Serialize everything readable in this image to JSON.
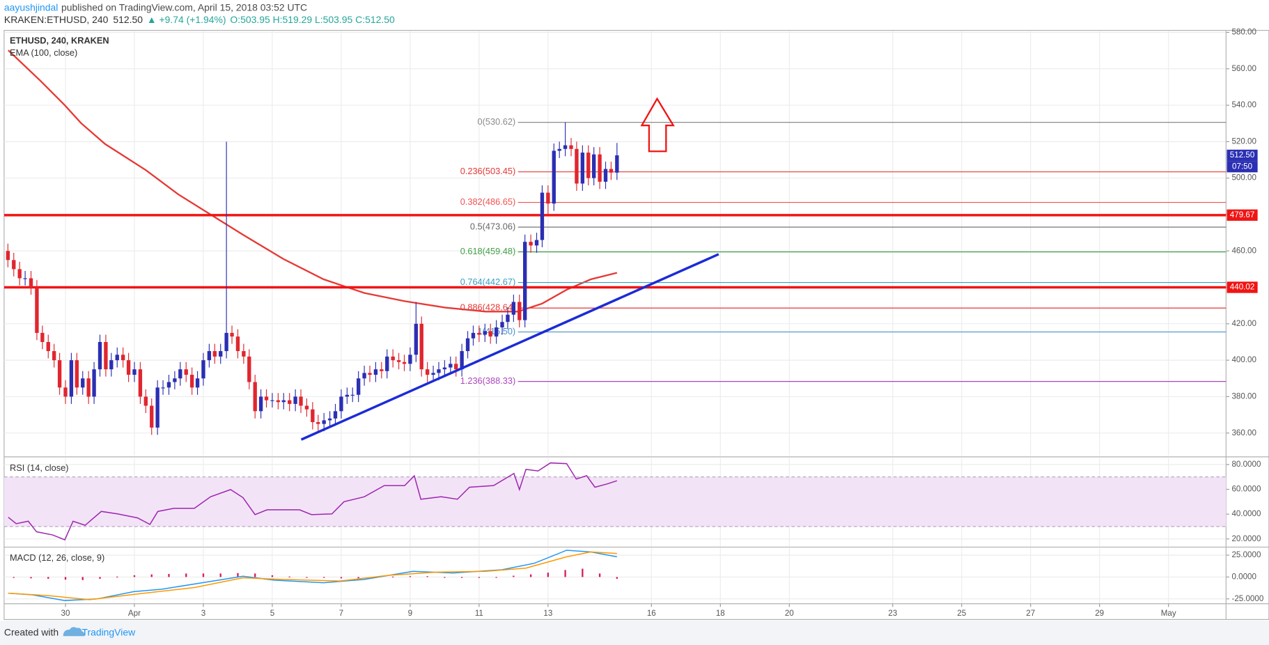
{
  "header": {
    "publisher": "aayushjindal",
    "published": "published on TradingView.com, April 15, 2018 03:52 UTC",
    "symbol": "KRAKEN:ETHUSD, 240",
    "last": "512.50",
    "change": "▲ +9.74 (+1.94%)",
    "ohlc": "O:503.95 H:519.29 L:503.95 C:512.50"
  },
  "chart_data": [
    {
      "type": "candlestick",
      "title": "ETHUSD, 240, KRAKEN",
      "up_color": "#2b2fb3",
      "down_color": "#e0262f",
      "x": [
        -3.67,
        -3.5,
        -3.33,
        -3.17,
        -3,
        -2.83,
        -2.67,
        -2.5,
        -2.33,
        -2.17,
        -2,
        -1.83,
        -1.67,
        -1.5,
        -1.33,
        -1.17,
        -1,
        -0.83,
        -0.67,
        -0.5,
        -0.33,
        -0.17,
        0,
        0.17,
        0.33,
        0.5,
        0.67,
        0.83,
        1,
        1.17,
        1.33,
        1.5,
        1.67,
        1.83,
        2,
        2.17,
        2.33,
        2.5,
        2.67,
        2.83,
        3,
        3.17,
        3.33,
        3.5,
        3.67,
        3.83,
        4,
        4.17,
        4.33,
        4.5,
        4.67,
        4.83,
        5,
        5.17,
        5.33,
        5.5,
        5.67,
        5.83,
        6,
        6.17,
        6.33,
        6.5,
        6.67,
        6.83,
        7,
        7.17,
        7.33,
        7.5,
        7.67,
        7.83,
        8,
        8.17,
        8.33,
        8.5,
        8.67,
        8.83,
        9,
        9.17,
        9.33,
        9.5,
        9.67,
        9.83,
        10,
        10.17,
        10.33,
        10.5,
        10.67,
        10.83,
        11,
        11.17,
        11.33,
        11.5,
        11.67,
        11.83,
        12,
        12.17,
        12.33,
        12.5,
        12.67,
        12.83,
        13,
        13.17,
        13.33,
        13.5,
        13.67,
        13.83,
        14
      ],
      "open": [
        460,
        455,
        450,
        445,
        445,
        440,
        415,
        410,
        405,
        400,
        385,
        380,
        400,
        385,
        390,
        380,
        395,
        410,
        395,
        400,
        403,
        400,
        392,
        395,
        380,
        375,
        363,
        385,
        385,
        388,
        390,
        395,
        392,
        385,
        390,
        400,
        405,
        402,
        405,
        415,
        413,
        405,
        402,
        388,
        372,
        380,
        378,
        378,
        377,
        378,
        376,
        380,
        375,
        373,
        366,
        365,
        367,
        368,
        372,
        380,
        381,
        381,
        390,
        393,
        392,
        395,
        394,
        402,
        400,
        399,
        398,
        403,
        420,
        395,
        392,
        393,
        395,
        396,
        398,
        395,
        405,
        412,
        415,
        414,
        416,
        413,
        418,
        421,
        425,
        432,
        422,
        465,
        463,
        466,
        492,
        486,
        515,
        516,
        518,
        516,
        497,
        514,
        500,
        513,
        498,
        505,
        503
      ],
      "high": [
        464,
        459,
        454,
        449,
        449,
        444,
        419,
        414,
        409,
        404,
        389,
        404,
        404,
        394,
        394,
        399,
        414,
        414,
        404,
        407,
        407,
        404,
        399,
        399,
        384,
        379,
        389,
        389,
        392,
        394,
        399,
        399,
        396,
        394,
        404,
        409,
        409,
        409,
        520,
        419,
        417,
        409,
        406,
        392,
        384,
        384,
        382,
        382,
        382,
        382,
        384,
        384,
        379,
        377,
        370,
        371,
        372,
        376,
        384,
        385,
        385,
        394,
        397,
        397,
        399,
        399,
        406,
        406,
        404,
        403,
        407,
        432,
        424,
        399,
        397,
        399,
        400,
        402,
        402,
        409,
        416,
        419,
        419,
        420,
        420,
        422,
        425,
        429,
        436,
        436,
        469,
        469,
        470,
        496,
        496,
        519,
        520,
        530.6,
        522,
        520,
        518,
        518,
        517,
        517,
        509,
        509,
        519.29
      ],
      "low": [
        451,
        446,
        441,
        441,
        436,
        411,
        406,
        401,
        396,
        381,
        376,
        376,
        381,
        381,
        376,
        376,
        391,
        391,
        391,
        396,
        396,
        388,
        388,
        376,
        371,
        359,
        359,
        381,
        381,
        384,
        386,
        388,
        381,
        381,
        386,
        396,
        398,
        398,
        401,
        409,
        401,
        398,
        384,
        368,
        368,
        374,
        374,
        373,
        373,
        372,
        372,
        371,
        369,
        362,
        361,
        361,
        363,
        364,
        368,
        376,
        377,
        377,
        386,
        388,
        388,
        390,
        390,
        396,
        395,
        394,
        394,
        399,
        391,
        388,
        388,
        389,
        391,
        392,
        391,
        391,
        401,
        408,
        410,
        410,
        409,
        409,
        414,
        417,
        421,
        418,
        418,
        459,
        459,
        462,
        480,
        482,
        511,
        512,
        512,
        493,
        493,
        496,
        496,
        494,
        494,
        499,
        499
      ],
      "close": [
        455,
        450,
        445,
        445,
        440,
        415,
        410,
        405,
        400,
        385,
        380,
        400,
        385,
        390,
        380,
        395,
        410,
        395,
        400,
        403,
        400,
        392,
        395,
        380,
        375,
        363,
        385,
        385,
        388,
        390,
        395,
        392,
        385,
        390,
        400,
        405,
        402,
        405,
        415,
        413,
        405,
        402,
        388,
        372,
        380,
        378,
        378,
        377,
        378,
        376,
        380,
        375,
        373,
        366,
        365,
        367,
        368,
        372,
        380,
        381,
        381,
        390,
        393,
        392,
        395,
        394,
        402,
        400,
        399,
        398,
        403,
        420,
        395,
        392,
        393,
        395,
        396,
        398,
        395,
        405,
        412,
        415,
        414,
        416,
        413,
        418,
        421,
        425,
        432,
        422,
        465,
        463,
        466,
        492,
        486,
        515,
        516,
        518,
        516,
        497,
        514,
        500,
        513,
        498,
        505,
        503,
        512.5
      ],
      "series": [
        {
          "name": "EMA (100, close)",
          "color": "#e53935",
          "x": [
            -3.66,
            -2.72,
            -2.02,
            -1.55,
            -0.85,
            0.33,
            1.27,
            2.21,
            3.15,
            4.32,
            5.49,
            6.67,
            7.84,
            9.01,
            10.19,
            11.13,
            11.83,
            12.54,
            13.24,
            14
          ],
          "values": [
            570.2,
            553.3,
            540,
            530.2,
            518.7,
            504.4,
            491.1,
            480,
            468.9,
            455.6,
            444.4,
            436.9,
            432.4,
            428.9,
            426.7,
            426.7,
            431.1,
            438.7,
            444.4,
            448
          ]
        }
      ],
      "levels": [
        {
          "label": "0(530.62)",
          "value": 530.62,
          "color": "#8a8a8a"
        },
        {
          "label": "0.236(503.45)",
          "value": 503.45,
          "color": "#e53935"
        },
        {
          "label": "0.382(486.65)",
          "value": 486.65,
          "color": "#ef5350"
        },
        {
          "label": "0.5(473.06)",
          "value": 473.06,
          "color": "#666666"
        },
        {
          "label": "0.618(459.48)",
          "value": 459.48,
          "color": "#43a047"
        },
        {
          "label": "0.764(442.67)",
          "value": 442.67,
          "color": "#3a9fc4"
        },
        {
          "label": "0.886(428.64)",
          "value": 428.64,
          "color": "#e53935"
        },
        {
          "label": "1(415.50)",
          "value": 415.5,
          "color": "#4a90c8"
        },
        {
          "label": "1.236(388.33)",
          "value": 388.33,
          "color": "#ab47bc"
        }
      ],
      "hlines": [
        {
          "value": 479.67,
          "label": "479.67",
          "color": "#f01414"
        },
        {
          "value": 440.02,
          "label": "440.02",
          "color": "#f01414"
        }
      ],
      "trendline": {
        "x": [
          4.84,
          16.95
        ],
        "values": [
          356.4,
          458.2
        ],
        "color": "#1c2bd6"
      },
      "last_price": {
        "value": 512.5,
        "label": "512.50",
        "countdown": "07:50",
        "color": "#2b2fb3"
      },
      "xlim": [
        -3.78,
        31.67
      ],
      "ylim": [
        347.6,
        580.9
      ],
      "yticks": [
        {
          "value": 360,
          "label": "360.00"
        },
        {
          "value": 380,
          "label": "380.00"
        },
        {
          "value": 400,
          "label": "400.00"
        },
        {
          "value": 420,
          "label": "420.00"
        },
        {
          "value": 440,
          "label": "440.00"
        },
        {
          "value": 460,
          "label": "460.00"
        },
        {
          "value": 480,
          "label": "480.00"
        },
        {
          "value": 500,
          "label": "500.00"
        },
        {
          "value": 520,
          "label": "520.00"
        },
        {
          "value": 540,
          "label": "540.00"
        },
        {
          "value": 560,
          "label": "560.00"
        },
        {
          "value": 580,
          "label": "580.00"
        }
      ],
      "grid": true
    },
    {
      "type": "line",
      "title": "RSI (14, close)",
      "color": "#9c27b0",
      "band": [
        30,
        70
      ],
      "band_color": "#f3e3f7",
      "x": [
        -3.66,
        -3.43,
        -3.08,
        -2.84,
        -2.37,
        -2.02,
        -1.78,
        -1.43,
        -0.96,
        -0.49,
        0.09,
        0.45,
        0.68,
        1.15,
        1.74,
        2.21,
        2.79,
        3.15,
        3.5,
        3.85,
        4.79,
        5.14,
        5.73,
        6.08,
        6.67,
        7.25,
        7.84,
        8.12,
        8.31,
        8.9,
        9.37,
        9.72,
        10.42,
        11.01,
        11.17,
        11.36,
        11.71,
        12.07,
        12.54,
        12.82,
        13.12,
        13.36,
        13.71,
        14
      ],
      "values": [
        37.5,
        32.3,
        34.3,
        25.8,
        23.2,
        19.3,
        34.3,
        31,
        42.2,
        40.2,
        37,
        31.7,
        42.2,
        44.7,
        44.7,
        54,
        59.8,
        53.3,
        39.6,
        43.5,
        43.5,
        39.6,
        40.2,
        50,
        54,
        63,
        63,
        70.9,
        52,
        54,
        52,
        61.7,
        63,
        72.8,
        59.8,
        76.1,
        74.8,
        81.3,
        80.7,
        68.3,
        71,
        61.7,
        64.3,
        66.9
      ],
      "xlim": [
        -3.78,
        31.67
      ],
      "ylim": [
        14.1,
        85.2
      ],
      "yticks": [
        {
          "value": 20,
          "label": "20.0000"
        },
        {
          "value": 40,
          "label": "40.0000"
        },
        {
          "value": 60,
          "label": "60.0000"
        },
        {
          "value": 80,
          "label": "80.0000"
        }
      ],
      "grid": true
    },
    {
      "type": "macd",
      "title": "MACD (12, 26, close, 9)",
      "macd": {
        "color": "#2196f3",
        "x": [
          -3.66,
          -2.96,
          -2.02,
          -1.08,
          -0.02,
          0.8,
          1.97,
          3.15,
          4.08,
          5.49,
          6.67,
          8.08,
          9.25,
          10.66,
          11.6,
          12.54,
          13.24,
          14
        ],
        "values": [
          -18.5,
          -20.4,
          -26.9,
          -25,
          -16.7,
          -13.9,
          -6.5,
          0.9,
          -3.7,
          -6.5,
          -2.8,
          6.5,
          4.6,
          8.3,
          15.7,
          30.6,
          28.7,
          23.1
        ]
      },
      "signal": {
        "color": "#ff9800",
        "x": [
          -3.66,
          -2.49,
          -1.31,
          0.09,
          1.74,
          3.15,
          4.32,
          5.96,
          7.37,
          8.78,
          10.19,
          11.36,
          12.54,
          13.24,
          14
        ],
        "values": [
          -18.5,
          -21.3,
          -25.9,
          -19.4,
          -12,
          -0.9,
          -2.8,
          -4.6,
          1.9,
          5.6,
          6.5,
          10.2,
          23.1,
          28.7,
          26.9
        ]
      },
      "histogram": {
        "color": "#d81b60",
        "x": [
          -3.5,
          -3,
          -2.5,
          -2,
          -1.5,
          -1,
          -0.5,
          0,
          0.5,
          1,
          1.5,
          2,
          2.5,
          3,
          3.5,
          4,
          4.5,
          5,
          5.5,
          6,
          6.5,
          7,
          7.5,
          8,
          8.5,
          9,
          9.5,
          10,
          10.5,
          11,
          11.5,
          12,
          12.5,
          13,
          13.5,
          14
        ],
        "values": [
          -1,
          -1.5,
          -2,
          -3,
          -3.5,
          -2,
          0.5,
          2,
          3,
          3.5,
          4,
          4,
          4,
          4.5,
          4,
          2,
          0.5,
          -0.5,
          -1,
          -1.5,
          -1.5,
          -0.5,
          0.5,
          1,
          1,
          -0.5,
          -1,
          -1,
          0,
          1.5,
          3,
          5,
          8,
          9.5,
          4,
          -2
        ]
      },
      "xlim": [
        -3.78,
        31.67
      ],
      "ylim": [
        -29.6,
        33.3
      ],
      "yticks": [
        {
          "value": -25,
          "label": "-25.0000"
        },
        {
          "value": 0,
          "label": "0.0000"
        },
        {
          "value": 25,
          "label": "25.0000"
        }
      ],
      "xticks": [
        {
          "value": -2,
          "label": "30"
        },
        {
          "value": 0,
          "label": "Apr"
        },
        {
          "value": 2,
          "label": "3"
        },
        {
          "value": 4,
          "label": "5"
        },
        {
          "value": 6,
          "label": "7"
        },
        {
          "value": 8,
          "label": "9"
        },
        {
          "value": 10,
          "label": "11"
        },
        {
          "value": 12,
          "label": "13"
        },
        {
          "value": 15,
          "label": "16"
        },
        {
          "value": 17,
          "label": "18"
        },
        {
          "value": 19,
          "label": "20"
        },
        {
          "value": 22,
          "label": "23"
        },
        {
          "value": 24,
          "label": "25"
        },
        {
          "value": 26,
          "label": "27"
        },
        {
          "value": 28,
          "label": "29"
        },
        {
          "value": 30,
          "label": "May"
        }
      ],
      "grid": true
    }
  ],
  "footer": {
    "created": "Created with",
    "brand": "TradingView"
  }
}
